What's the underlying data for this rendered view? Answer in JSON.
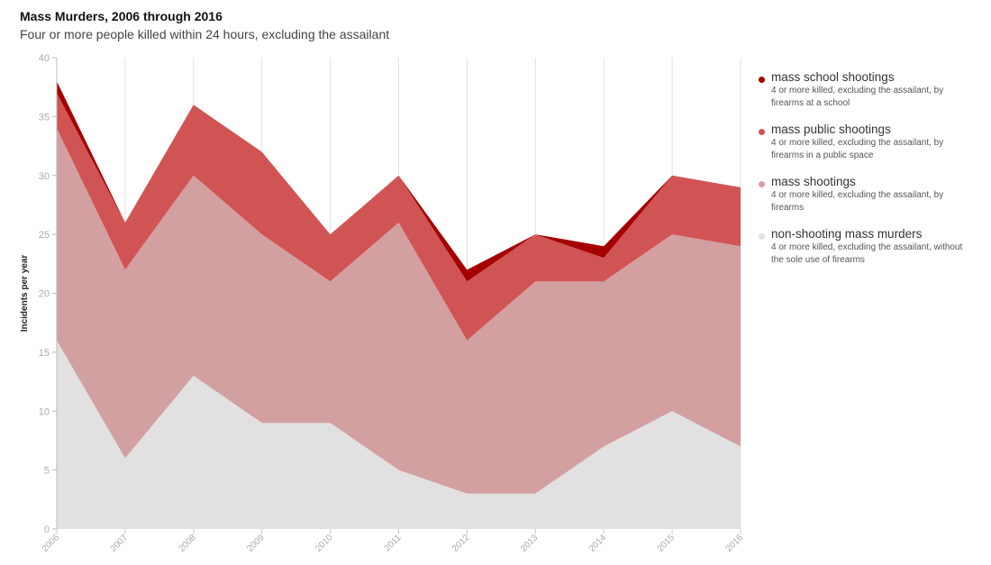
{
  "title": "Mass Murders, 2006 through 2016",
  "subtitle": "Four or more people killed within 24 hours, excluding the assailant",
  "chart_data": {
    "type": "area",
    "stacked": true,
    "x": [
      "2006",
      "2007",
      "2008",
      "2009",
      "2010",
      "2011",
      "2012",
      "2013",
      "2014",
      "2015",
      "2016"
    ],
    "ylabel": "Incidents per year",
    "xlabel": "",
    "ylim": [
      0,
      40
    ],
    "yticks": [
      "0",
      "5",
      "10",
      "15",
      "20",
      "25",
      "30",
      "35",
      "40"
    ],
    "grid": "vertical",
    "legend_position": "right",
    "series": [
      {
        "name": "non-shooting mass murders",
        "description": "4 or more killed, excluding the assailant, without the sole use of firearms",
        "color": "#e1e1e1",
        "values": [
          16,
          6,
          13,
          9,
          9,
          5,
          3,
          3,
          7,
          10,
          7
        ]
      },
      {
        "name": "mass shootings",
        "description": "4 or more killed, excluding the assailant, by firearms",
        "color": "#d3a0a1",
        "values": [
          18,
          16,
          17,
          16,
          12,
          21,
          13,
          18,
          14,
          15,
          17
        ]
      },
      {
        "name": "mass public shootings",
        "description": "4 or more killed, excluding the assailant, by firearms in a public space",
        "color": "#d15454",
        "values": [
          3,
          4,
          6,
          7,
          4,
          4,
          5,
          4,
          2,
          5,
          5
        ]
      },
      {
        "name": "mass school shootings",
        "description": "4 or more killed, excluding the assailant, by firearms at a school",
        "color": "#a50000",
        "values": [
          1,
          0,
          0,
          0,
          0,
          0,
          1,
          0,
          1,
          0,
          0
        ]
      }
    ]
  }
}
